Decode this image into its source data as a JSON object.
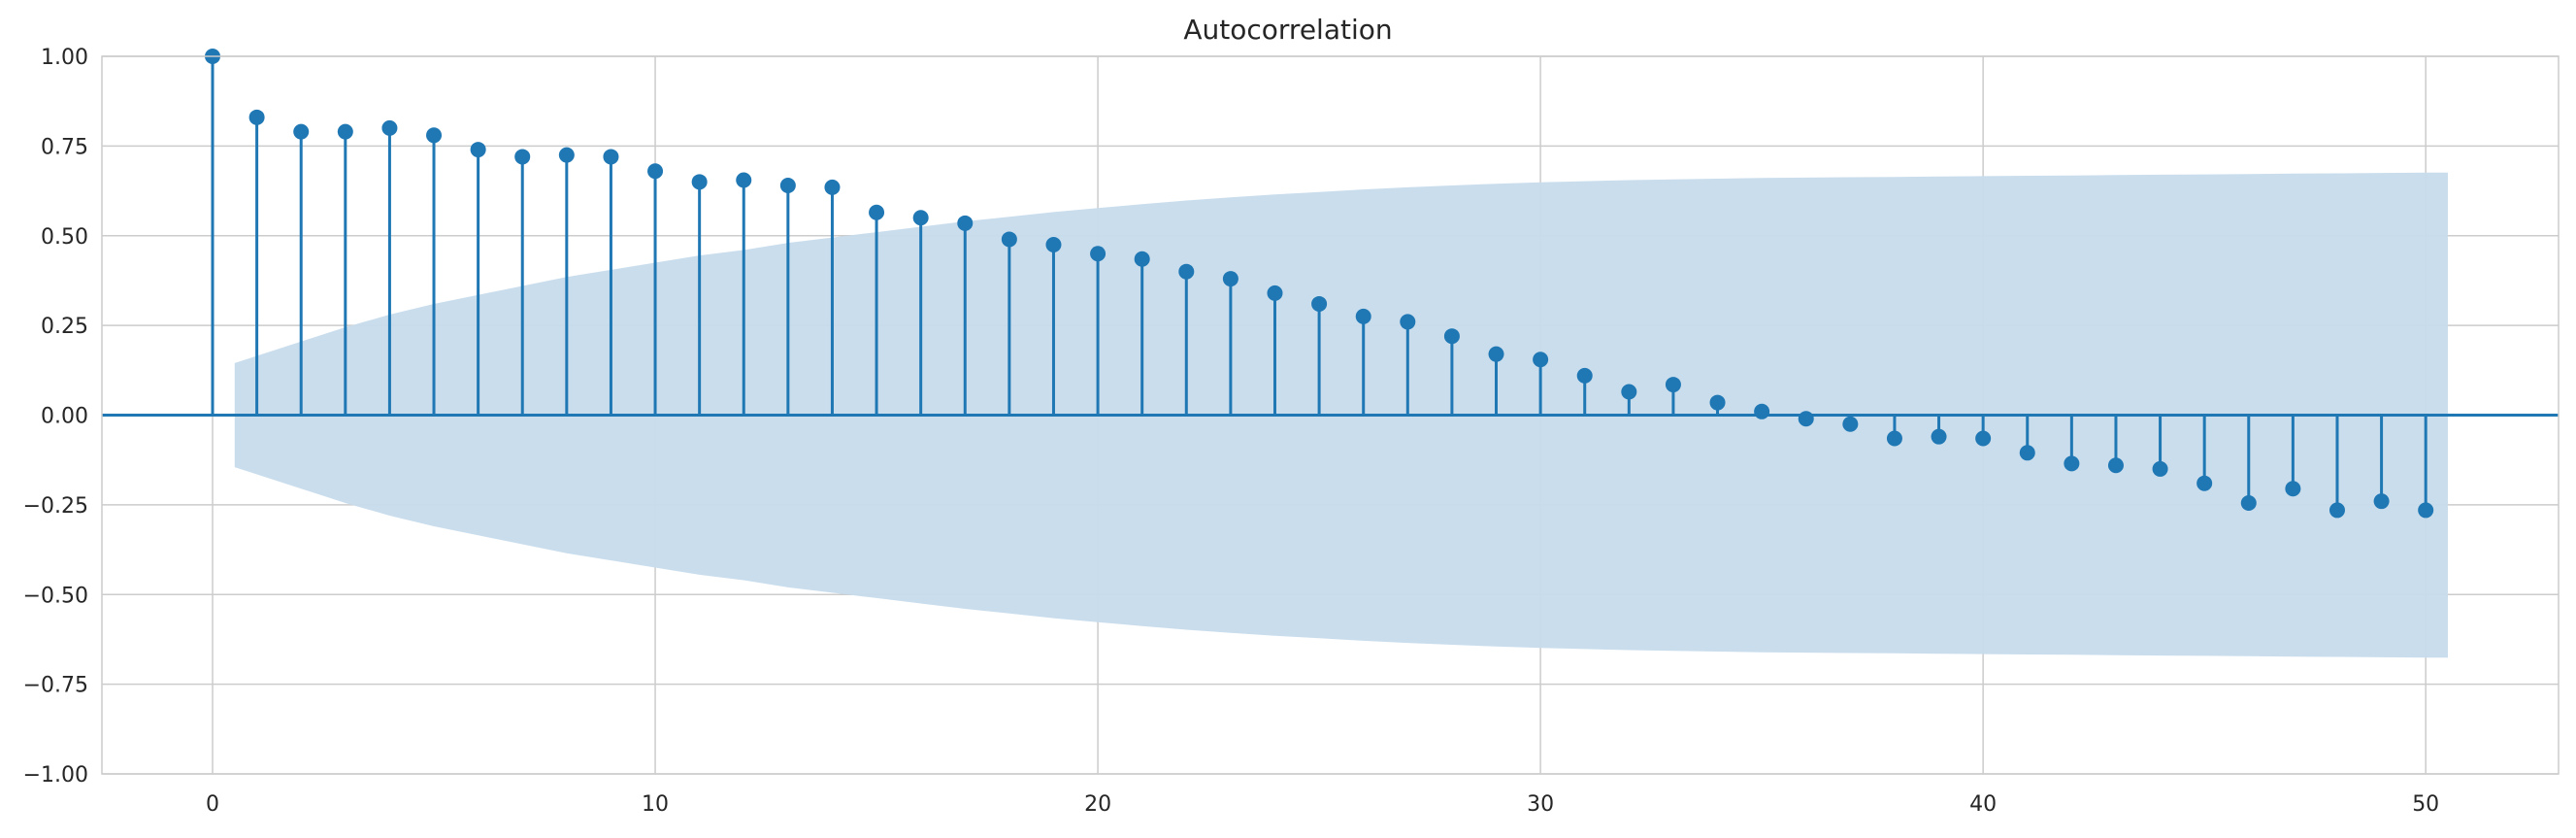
{
  "chart_data": {
    "type": "stem",
    "title": "Autocorrelation",
    "xlabel": "",
    "ylabel": "",
    "xlim": [
      -2.5,
      53
    ],
    "ylim": [
      -1.0,
      1.0
    ],
    "x_ticks": [
      0,
      10,
      20,
      30,
      40,
      50
    ],
    "y_ticks": [
      -1.0,
      -0.75,
      -0.5,
      -0.25,
      0.0,
      0.25,
      0.5,
      0.75,
      1.0
    ],
    "x_tick_labels": [
      "0",
      "10",
      "20",
      "30",
      "40",
      "50"
    ],
    "y_tick_labels": [
      "−1.00",
      "−0.75",
      "−0.50",
      "−0.25",
      "0.00",
      "0.25",
      "0.50",
      "0.75",
      "1.00"
    ],
    "grid": true,
    "lags": [
      0,
      1,
      2,
      3,
      4,
      5,
      6,
      7,
      8,
      9,
      10,
      11,
      12,
      13,
      14,
      15,
      16,
      17,
      18,
      19,
      20,
      21,
      22,
      23,
      24,
      25,
      26,
      27,
      28,
      29,
      30,
      31,
      32,
      33,
      34,
      35,
      36,
      37,
      38,
      39,
      40,
      41,
      42,
      43,
      44,
      45,
      46,
      47,
      48,
      49,
      50
    ],
    "values": [
      1.0,
      0.83,
      0.79,
      0.79,
      0.8,
      0.78,
      0.74,
      0.72,
      0.725,
      0.72,
      0.68,
      0.65,
      0.655,
      0.64,
      0.635,
      0.565,
      0.55,
      0.535,
      0.49,
      0.475,
      0.45,
      0.435,
      0.4,
      0.38,
      0.34,
      0.31,
      0.275,
      0.26,
      0.22,
      0.17,
      0.155,
      0.11,
      0.065,
      0.085,
      0.035,
      0.01,
      -0.01,
      -0.025,
      -0.065,
      -0.06,
      -0.065,
      -0.105,
      -0.135,
      -0.14,
      -0.15,
      -0.19,
      -0.245,
      -0.205,
      -0.265,
      -0.24,
      -0.265
    ],
    "confint_x": [
      0.5,
      1,
      2,
      3,
      4,
      5,
      6,
      7,
      8,
      9,
      10,
      11,
      12,
      13,
      14,
      15,
      16,
      17,
      18,
      19,
      20,
      21,
      22,
      23,
      24,
      25,
      26,
      27,
      28,
      29,
      30,
      31,
      32,
      33,
      34,
      35,
      36,
      37,
      38,
      39,
      40,
      41,
      42,
      43,
      44,
      45,
      46,
      47,
      48,
      49,
      50,
      50.5
    ],
    "confint_upper": [
      0.145,
      0.165,
      0.205,
      0.245,
      0.28,
      0.31,
      0.335,
      0.36,
      0.385,
      0.405,
      0.425,
      0.445,
      0.46,
      0.48,
      0.495,
      0.51,
      0.525,
      0.54,
      0.553,
      0.566,
      0.577,
      0.588,
      0.598,
      0.607,
      0.615,
      0.622,
      0.629,
      0.635,
      0.64,
      0.645,
      0.649,
      0.652,
      0.655,
      0.657,
      0.659,
      0.661,
      0.662,
      0.663,
      0.664,
      0.665,
      0.666,
      0.667,
      0.668,
      0.669,
      0.67,
      0.671,
      0.672,
      0.673,
      0.674,
      0.675,
      0.676,
      0.676
    ],
    "colors": {
      "stem": "#1f77b4",
      "band": "#c6dbec",
      "grid": "#cccccc",
      "axis_line": "#1f77b4"
    }
  }
}
